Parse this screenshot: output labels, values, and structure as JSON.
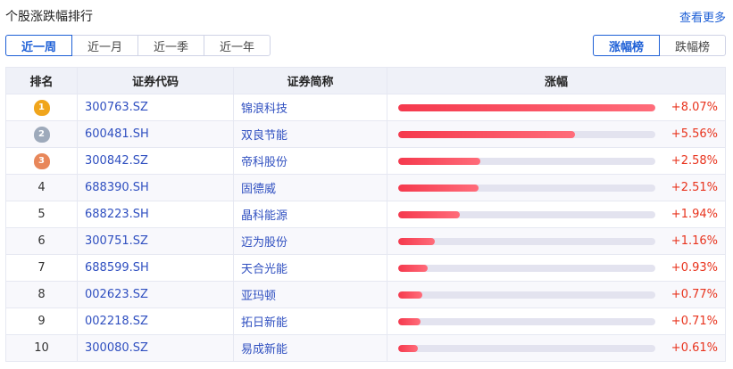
{
  "title": "个股涨跌幅排行",
  "more_link": "查看更多",
  "periods": [
    {
      "label": "近一周",
      "active": true
    },
    {
      "label": "近一月",
      "active": false
    },
    {
      "label": "近一季",
      "active": false
    },
    {
      "label": "近一年",
      "active": false
    }
  ],
  "boards": [
    {
      "label": "涨幅榜",
      "active": true
    },
    {
      "label": "跌幅榜",
      "active": false
    }
  ],
  "columns": [
    "排名",
    "证券代码",
    "证券简称",
    "涨幅"
  ],
  "medal_colors": [
    "#f0a51c",
    "#9eaabb",
    "#e8875a"
  ],
  "max_change": 8.07,
  "rows": [
    {
      "rank": "1",
      "code": "300763.SZ",
      "name": "锦浪科技",
      "change": 8.07,
      "change_text": "+8.07%"
    },
    {
      "rank": "2",
      "code": "600481.SH",
      "name": "双良节能",
      "change": 5.56,
      "change_text": "+5.56%"
    },
    {
      "rank": "3",
      "code": "300842.SZ",
      "name": "帝科股份",
      "change": 2.58,
      "change_text": "+2.58%"
    },
    {
      "rank": "4",
      "code": "688390.SH",
      "name": "固德威",
      "change": 2.51,
      "change_text": "+2.51%"
    },
    {
      "rank": "5",
      "code": "688223.SH",
      "name": "晶科能源",
      "change": 1.94,
      "change_text": "+1.94%"
    },
    {
      "rank": "6",
      "code": "300751.SZ",
      "name": "迈为股份",
      "change": 1.16,
      "change_text": "+1.16%"
    },
    {
      "rank": "7",
      "code": "688599.SH",
      "name": "天合光能",
      "change": 0.93,
      "change_text": "+0.93%"
    },
    {
      "rank": "8",
      "code": "002623.SZ",
      "name": "亚玛顿",
      "change": 0.77,
      "change_text": "+0.77%"
    },
    {
      "rank": "9",
      "code": "002218.SZ",
      "name": "拓日新能",
      "change": 0.71,
      "change_text": "+0.71%"
    },
    {
      "rank": "10",
      "code": "300080.SZ",
      "name": "易成新能",
      "change": 0.61,
      "change_text": "+0.61%"
    }
  ]
}
